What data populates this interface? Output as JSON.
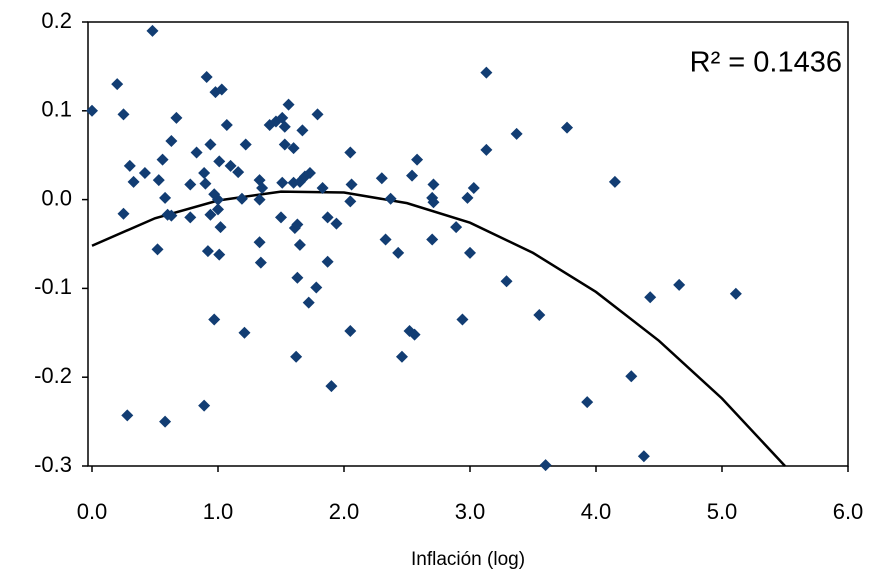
{
  "chart_data": {
    "type": "scatter",
    "x_label": "Inflación (log)",
    "annotation": "R² = 0.1436",
    "color": "#123d73",
    "fit_color": "#000000",
    "xlim": [
      0,
      6
    ],
    "ylim": [
      -0.3,
      0.2
    ],
    "xticks": [
      {
        "value": 0,
        "label": "0.0"
      },
      {
        "value": 1,
        "label": "1.0"
      },
      {
        "value": 2,
        "label": "2.0"
      },
      {
        "value": 3,
        "label": "3.0"
      },
      {
        "value": 4,
        "label": "4.0"
      },
      {
        "value": 5,
        "label": "5.0"
      },
      {
        "value": 6,
        "label": "6.0"
      }
    ],
    "yticks": [
      {
        "value": -0.3,
        "label": "-0.3"
      },
      {
        "value": -0.2,
        "label": "-0.2"
      },
      {
        "value": -0.1,
        "label": "-0.1"
      },
      {
        "value": 0,
        "label": "0.0"
      },
      {
        "value": 0.1,
        "label": "0.1"
      },
      {
        "value": 0.2,
        "label": "0.2"
      }
    ],
    "x": [
      0.0,
      0.2,
      0.48,
      0.25,
      0.25,
      0.28,
      0.3,
      0.33,
      0.42,
      0.53,
      0.56,
      0.58,
      0.52,
      0.58,
      0.6,
      0.63,
      0.67,
      0.63,
      0.78,
      0.78,
      0.83,
      0.89,
      0.91,
      0.9,
      0.92,
      0.89,
      0.94,
      0.94,
      0.97,
      0.98,
      1.03,
      1.01,
      1.0,
      1.0,
      1.01,
      0.97,
      1.02,
      1.07,
      1.1,
      1.16,
      1.19,
      1.22,
      1.21,
      1.33,
      1.35,
      1.33,
      1.33,
      1.34,
      1.41,
      1.46,
      1.51,
      1.53,
      1.56,
      1.53,
      1.6,
      1.5,
      1.51,
      1.6,
      1.61,
      1.63,
      1.65,
      1.63,
      1.62,
      1.65,
      1.69,
      1.73,
      1.67,
      1.72,
      1.78,
      1.79,
      1.83,
      1.87,
      1.87,
      1.9,
      1.94,
      2.05,
      2.06,
      2.05,
      2.05,
      2.3,
      2.33,
      2.37,
      2.43,
      2.46,
      2.52,
      2.54,
      2.56,
      2.58,
      2.7,
      2.71,
      2.7,
      2.71,
      2.89,
      2.94,
      2.98,
      3.0,
      3.03,
      3.13,
      3.13,
      3.29,
      3.37,
      3.55,
      3.6,
      3.77,
      3.93,
      4.15,
      4.28,
      4.38,
      4.43,
      4.66,
      5.11
    ],
    "values": [
      0.1,
      0.13,
      0.19,
      0.096,
      -0.016,
      -0.243,
      0.038,
      0.02,
      0.03,
      0.022,
      0.045,
      0.002,
      -0.056,
      -0.25,
      -0.017,
      0.066,
      0.092,
      -0.018,
      -0.02,
      0.017,
      0.053,
      0.03,
      0.138,
      0.018,
      -0.058,
      -0.232,
      0.062,
      -0.017,
      0.006,
      0.121,
      0.124,
      0.043,
      0.0,
      -0.011,
      -0.062,
      -0.135,
      -0.031,
      0.084,
      0.038,
      0.031,
      0.001,
      0.062,
      -0.15,
      0.022,
      0.013,
      0.0,
      -0.048,
      -0.071,
      0.084,
      0.088,
      0.092,
      0.082,
      0.107,
      0.062,
      0.058,
      -0.02,
      0.019,
      0.019,
      -0.032,
      -0.028,
      -0.051,
      -0.088,
      -0.177,
      0.02,
      0.026,
      0.03,
      0.078,
      -0.116,
      -0.099,
      0.096,
      0.013,
      -0.02,
      -0.07,
      -0.21,
      -0.027,
      0.053,
      0.017,
      -0.002,
      -0.148,
      0.024,
      -0.045,
      0.001,
      -0.06,
      -0.177,
      -0.148,
      0.027,
      -0.152,
      0.045,
      0.002,
      0.017,
      -0.045,
      -0.003,
      -0.031,
      -0.135,
      0.002,
      -0.06,
      0.013,
      0.056,
      0.143,
      -0.092,
      0.074,
      -0.13,
      -0.299,
      0.081,
      -0.228,
      0.02,
      -0.199,
      -0.289,
      -0.11,
      -0.096,
      -0.106
    ],
    "fit": {
      "x": [
        0,
        0.5,
        1.0,
        1.5,
        2.0,
        2.5,
        3.0,
        3.5,
        4.0,
        4.5,
        5.0,
        5.5
      ],
      "values": [
        -0.052,
        -0.021,
        -0.001,
        0.009,
        0.008,
        -0.004,
        -0.026,
        -0.06,
        -0.104,
        -0.159,
        -0.224,
        -0.3
      ]
    }
  }
}
